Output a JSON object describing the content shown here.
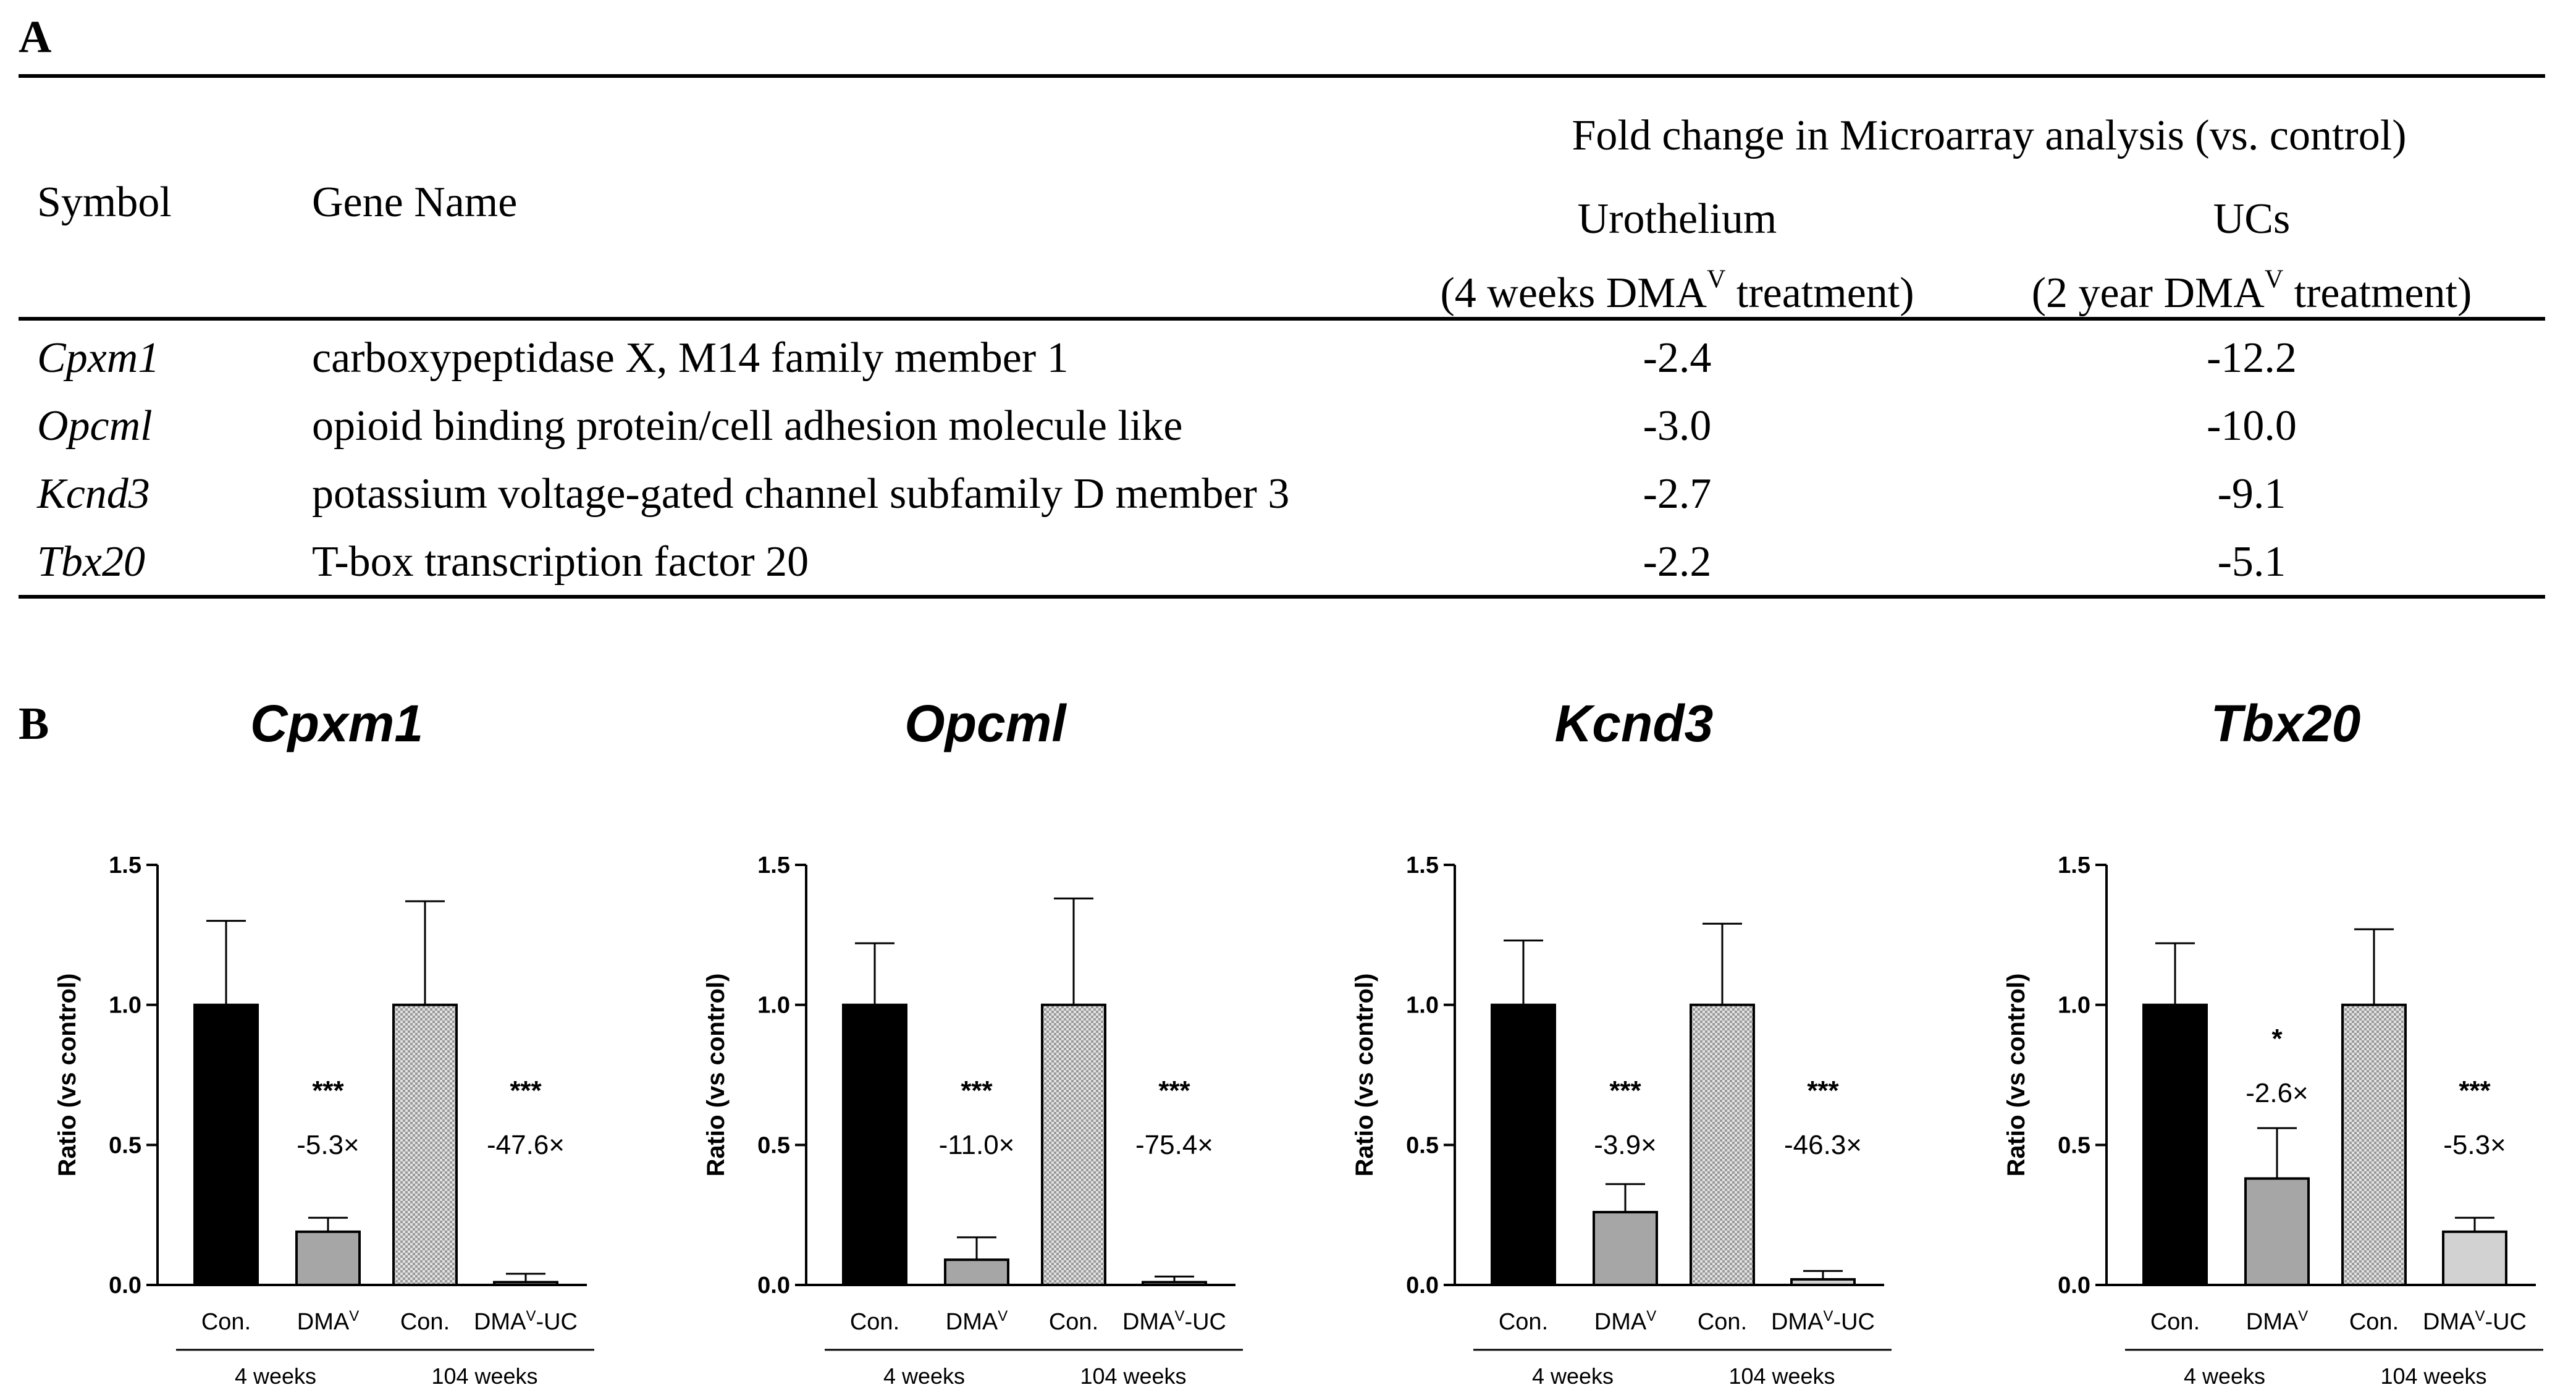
{
  "panel_a": {
    "label": "A",
    "header": {
      "symbol": "Symbol",
      "gene_name": "Gene Name",
      "fold_change": "Fold change in Microarray analysis (vs. control)",
      "col1_title": "Urothelium",
      "col1_prefix": "(4 weeks DMA",
      "col1_sup": "V",
      "col1_suffix": " treatment)",
      "col2_title": "UCs",
      "col2_prefix": "(2 year DMA",
      "col2_sup": "V",
      "col2_suffix": " treatment)"
    },
    "rows": [
      {
        "symbol": "Cpxm1",
        "name": "carboxypeptidase X, M14 family member 1",
        "urothelium": "-2.4",
        "ucs": "-12.2"
      },
      {
        "symbol": "Opcml",
        "name": "opioid binding protein/cell adhesion molecule like",
        "urothelium": "-3.0",
        "ucs": "-10.0"
      },
      {
        "symbol": "Kcnd3",
        "name": "potassium voltage-gated channel subfamily D member 3",
        "urothelium": "-2.7",
        "ucs": "-9.1"
      },
      {
        "symbol": "Tbx20",
        "name": "T-box transcription factor 20",
        "urothelium": "-2.2",
        "ucs": "-5.1"
      }
    ]
  },
  "panel_b": {
    "label": "B"
  },
  "colors": {
    "con": "#000000",
    "dma": "#a6a6a6",
    "con104": "#c8c8c8",
    "dmauc": "#d2d2d2"
  },
  "chart_data": [
    {
      "type": "bar",
      "title": "Cpxm1",
      "ylabel": "Ratio (vs control)",
      "ylim": [
        0,
        1.5
      ],
      "yticks": [
        "0.0",
        "0.5",
        "1.0",
        "1.5"
      ],
      "categories": [
        "Con.",
        "DMA^V",
        "Con.",
        "DMA^V-UC"
      ],
      "groups": [
        "4 weeks",
        "104 weeks"
      ],
      "values": [
        1.0,
        0.19,
        1.0,
        0.01
      ],
      "errors": [
        0.3,
        0.05,
        0.37,
        0.03
      ],
      "significance": [
        "",
        "***",
        "",
        "***"
      ],
      "fold_labels": [
        "",
        "-5.3×",
        "",
        "-47.6×"
      ]
    },
    {
      "type": "bar",
      "title": "Opcml",
      "ylabel": "Ratio (vs control)",
      "ylim": [
        0,
        1.5
      ],
      "yticks": [
        "0.0",
        "0.5",
        "1.0",
        "1.5"
      ],
      "categories": [
        "Con.",
        "DMA^V",
        "Con.",
        "DMA^V-UC"
      ],
      "groups": [
        "4 weeks",
        "104 weeks"
      ],
      "values": [
        1.0,
        0.09,
        1.0,
        0.01
      ],
      "errors": [
        0.22,
        0.08,
        0.38,
        0.02
      ],
      "significance": [
        "",
        "***",
        "",
        "***"
      ],
      "fold_labels": [
        "",
        "-11.0×",
        "",
        "-75.4×"
      ]
    },
    {
      "type": "bar",
      "title": "Kcnd3",
      "ylabel": "Ratio (vs control)",
      "ylim": [
        0,
        1.5
      ],
      "yticks": [
        "0.0",
        "0.5",
        "1.0",
        "1.5"
      ],
      "categories": [
        "Con.",
        "DMA^V",
        "Con.",
        "DMA^V-UC"
      ],
      "groups": [
        "4 weeks",
        "104 weeks"
      ],
      "values": [
        1.0,
        0.26,
        1.0,
        0.02
      ],
      "errors": [
        0.23,
        0.1,
        0.29,
        0.03
      ],
      "significance": [
        "",
        "***",
        "",
        "***"
      ],
      "fold_labels": [
        "",
        "-3.9×",
        "",
        "-46.3×"
      ]
    },
    {
      "type": "bar",
      "title": "Tbx20",
      "ylabel": "Ratio (vs control)",
      "ylim": [
        0,
        1.5
      ],
      "yticks": [
        "0.0",
        "0.5",
        "1.0",
        "1.5"
      ],
      "categories": [
        "Con.",
        "DMA^V",
        "Con.",
        "DMA^V-UC"
      ],
      "groups": [
        "4 weeks",
        "104 weeks"
      ],
      "values": [
        1.0,
        0.38,
        1.0,
        0.19
      ],
      "errors": [
        0.22,
        0.18,
        0.27,
        0.05
      ],
      "significance": [
        "",
        "*",
        "",
        "***"
      ],
      "fold_labels": [
        "",
        "-2.6×",
        "",
        "-5.3×"
      ]
    }
  ]
}
